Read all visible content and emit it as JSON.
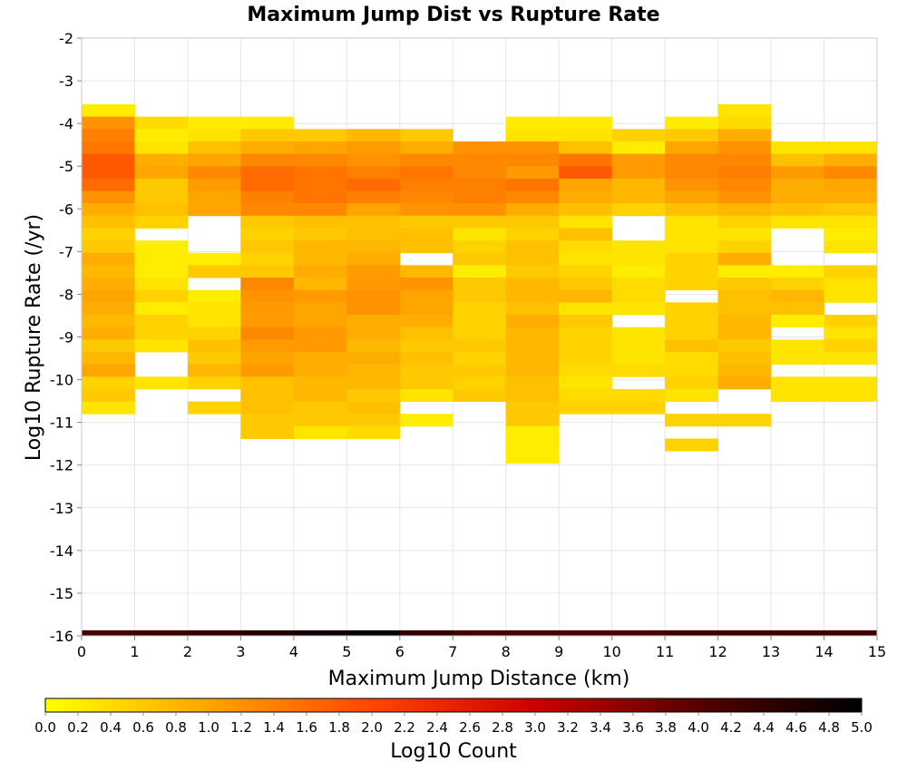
{
  "chart_data": {
    "type": "heatmap",
    "title": "Maximum Jump Dist vs Rupture Rate",
    "xlabel": "Maximum Jump Distance (km)",
    "ylabel": "Log10 Rupture Rate (/yr)",
    "xlim": [
      0,
      15
    ],
    "ylim": [
      -16,
      -2
    ],
    "x_ticks": [
      "0",
      "1",
      "2",
      "3",
      "4",
      "5",
      "6",
      "7",
      "8",
      "9",
      "10",
      "11",
      "12",
      "13",
      "14",
      "15"
    ],
    "y_ticks": [
      "-2",
      "-3",
      "-4",
      "-5",
      "-6",
      "-7",
      "-8",
      "-9",
      "-10",
      "-11",
      "-12",
      "-13",
      "-14",
      "-15",
      "-16"
    ],
    "cell_width_km": 1,
    "cell_height_log10": 0.29,
    "colorbar": {
      "label": "Log10 Count",
      "range": [
        0.0,
        5.0
      ],
      "ticks": [
        "0.0",
        "0.2",
        "0.4",
        "0.6",
        "0.8",
        "1.0",
        "1.2",
        "1.4",
        "1.6",
        "1.8",
        "2.0",
        "2.2",
        "2.4",
        "2.6",
        "2.8",
        "3.0",
        "3.2",
        "3.4",
        "3.6",
        "3.8",
        "4.0",
        "4.2",
        "4.4",
        "4.6",
        "4.8",
        "5.0"
      ],
      "colors": [
        "#ffff00",
        "#ffa500",
        "#ff4500",
        "#cc0000",
        "#550000",
        "#000000"
      ]
    },
    "y_bin_top_values": [
      -3.55,
      -3.84,
      -4.13,
      -4.42,
      -4.71,
      -5.0,
      -5.29,
      -5.58,
      -5.87,
      -6.16,
      -6.45,
      -6.74,
      -7.03,
      -7.32,
      -7.61,
      -7.9,
      -8.19,
      -8.48,
      -8.77,
      -9.06,
      -9.35,
      -9.64,
      -9.93,
      -10.22,
      -10.51,
      -10.8,
      -11.09,
      -11.38,
      -11.67,
      -11.96
    ],
    "grid": [
      [
        0.2,
        null,
        null,
        null,
        null,
        null,
        null,
        null,
        null,
        null,
        null,
        null,
        0.3,
        null,
        null
      ],
      [
        1.2,
        0.4,
        0.2,
        0.2,
        null,
        null,
        null,
        null,
        0.2,
        0.2,
        null,
        0.2,
        0.4,
        null,
        null
      ],
      [
        1.4,
        0.2,
        0.3,
        0.6,
        0.6,
        0.8,
        0.6,
        null,
        0.3,
        0.3,
        0.5,
        0.6,
        0.9,
        null,
        null
      ],
      [
        1.5,
        0.3,
        0.7,
        0.9,
        1.0,
        1.1,
        0.9,
        1.2,
        1.2,
        0.7,
        0.2,
        1.0,
        1.2,
        0.3,
        0.3
      ],
      [
        1.8,
        0.9,
        1.0,
        1.3,
        1.3,
        1.2,
        1.3,
        1.3,
        1.3,
        1.5,
        1.1,
        1.3,
        1.3,
        0.7,
        0.9
      ],
      [
        1.8,
        1.0,
        1.3,
        1.6,
        1.5,
        1.4,
        1.5,
        1.3,
        1.1,
        1.8,
        1.1,
        1.3,
        1.4,
        1.1,
        1.3
      ],
      [
        1.6,
        0.6,
        1.1,
        1.6,
        1.5,
        1.6,
        1.4,
        1.4,
        1.5,
        1.0,
        0.8,
        1.2,
        1.3,
        0.9,
        1.0
      ],
      [
        1.2,
        0.6,
        1.0,
        1.4,
        1.5,
        1.4,
        1.3,
        1.4,
        1.3,
        0.9,
        0.8,
        1.0,
        1.2,
        0.9,
        0.9
      ],
      [
        0.9,
        0.7,
        1.0,
        1.3,
        1.3,
        1.0,
        1.2,
        1.2,
        0.9,
        0.7,
        0.5,
        0.7,
        0.8,
        0.7,
        0.6
      ],
      [
        0.7,
        0.5,
        null,
        0.6,
        0.7,
        0.7,
        0.6,
        0.6,
        0.6,
        0.3,
        null,
        0.3,
        0.5,
        0.3,
        0.3
      ],
      [
        0.5,
        null,
        null,
        0.5,
        0.6,
        0.7,
        0.7,
        0.3,
        0.5,
        0.7,
        null,
        0.3,
        0.3,
        null,
        0.2
      ],
      [
        0.6,
        0.2,
        null,
        0.6,
        0.8,
        0.8,
        0.7,
        0.5,
        0.7,
        0.4,
        0.3,
        0.3,
        0.5,
        null,
        0.3
      ],
      [
        0.9,
        0.2,
        0.2,
        0.5,
        0.8,
        0.9,
        null,
        0.6,
        0.7,
        0.3,
        0.3,
        0.5,
        0.9,
        null,
        null
      ],
      [
        0.8,
        0.2,
        0.6,
        0.6,
        0.9,
        1.1,
        0.8,
        0.2,
        0.6,
        0.5,
        0.2,
        0.5,
        0.2,
        0.2,
        0.5
      ],
      [
        0.9,
        0.3,
        null,
        1.3,
        0.8,
        1.1,
        1.2,
        0.6,
        0.8,
        0.6,
        0.4,
        0.5,
        0.6,
        0.5,
        0.3
      ],
      [
        1.0,
        0.5,
        0.2,
        1.2,
        1.1,
        1.2,
        1.0,
        0.6,
        0.8,
        0.8,
        0.4,
        null,
        0.7,
        0.8,
        0.3
      ],
      [
        0.9,
        0.2,
        0.3,
        1.1,
        1.0,
        1.2,
        1.0,
        0.5,
        0.7,
        0.3,
        0.3,
        0.5,
        0.7,
        0.7,
        null
      ],
      [
        0.8,
        0.5,
        0.3,
        1.1,
        1.0,
        0.9,
        0.9,
        0.5,
        0.9,
        0.6,
        null,
        0.5,
        0.8,
        0.2,
        0.5
      ],
      [
        0.9,
        0.5,
        0.5,
        1.3,
        1.1,
        0.9,
        0.7,
        0.5,
        0.8,
        0.5,
        0.3,
        0.5,
        0.8,
        null,
        0.3
      ],
      [
        0.6,
        0.3,
        0.7,
        1.1,
        1.1,
        0.8,
        0.6,
        0.6,
        0.8,
        0.5,
        0.3,
        0.7,
        0.6,
        0.3,
        0.5
      ],
      [
        0.8,
        null,
        0.6,
        1.0,
        0.9,
        0.9,
        0.7,
        0.5,
        0.8,
        0.5,
        0.3,
        0.4,
        0.7,
        0.3,
        0.3
      ],
      [
        1.0,
        null,
        0.8,
        1.1,
        0.9,
        0.8,
        0.6,
        0.6,
        0.8,
        0.4,
        0.4,
        0.4,
        0.8,
        null,
        null
      ],
      [
        0.5,
        0.3,
        0.5,
        0.7,
        0.8,
        0.8,
        0.6,
        0.5,
        0.7,
        0.3,
        null,
        0.5,
        0.9,
        0.3,
        0.3
      ],
      [
        0.6,
        null,
        null,
        0.7,
        0.8,
        0.6,
        0.3,
        0.6,
        0.7,
        0.4,
        0.4,
        0.3,
        null,
        0.3,
        0.3
      ],
      [
        0.3,
        null,
        0.5,
        0.7,
        0.6,
        0.7,
        null,
        null,
        0.6,
        0.5,
        0.5,
        null,
        null,
        null,
        null
      ],
      [
        null,
        null,
        null,
        0.6,
        0.6,
        0.6,
        0.2,
        null,
        0.6,
        null,
        null,
        0.5,
        0.5,
        null,
        null
      ],
      [
        null,
        null,
        null,
        0.6,
        0.3,
        0.4,
        null,
        null,
        0.2,
        null,
        null,
        null,
        null,
        null,
        null
      ],
      [
        null,
        null,
        null,
        null,
        null,
        null,
        null,
        null,
        0.2,
        null,
        null,
        0.5,
        null,
        null,
        null
      ],
      [
        null,
        null,
        null,
        null,
        null,
        null,
        null,
        null,
        0.2,
        null,
        null,
        null,
        null,
        null,
        null
      ]
    ],
    "baseline_row": {
      "y_top": -15.87,
      "y_bottom": -16,
      "values": [
        4.2,
        4.3,
        4.4,
        4.6,
        4.8,
        4.9,
        4.4,
        4.2,
        4.2,
        4.1,
        4.1,
        4.3,
        4.3,
        4.3,
        4.3
      ]
    }
  }
}
